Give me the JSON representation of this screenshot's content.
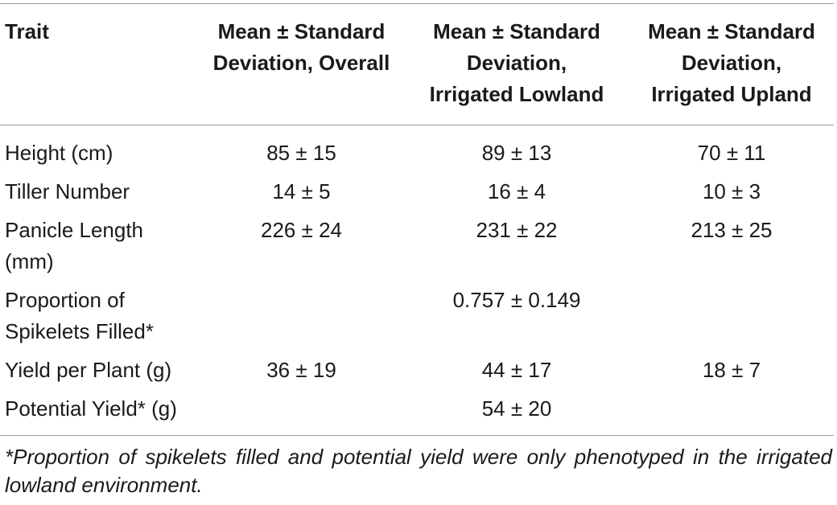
{
  "table": {
    "headers": {
      "trait": "Trait",
      "overall": [
        "Mean ± Standard",
        "Deviation, Overall"
      ],
      "lowland": [
        "Mean ± Standard",
        "Deviation,",
        "Irrigated Lowland"
      ],
      "upland": [
        "Mean ± Standard",
        "Deviation,",
        "Irrigated Upland"
      ]
    },
    "rows": [
      {
        "trait": [
          "Height (cm)"
        ],
        "overall": "85 ± 15",
        "lowland": "89 ± 13",
        "upland": "70 ± 11"
      },
      {
        "trait": [
          "Tiller Number"
        ],
        "overall": "14 ± 5",
        "lowland": "16 ± 4",
        "upland": "10 ± 3"
      },
      {
        "trait": [
          "Panicle Length",
          "(mm)"
        ],
        "overall": "226 ± 24",
        "lowland": "231 ± 22",
        "upland": "213 ± 25"
      },
      {
        "trait": [
          "Proportion of",
          "Spikelets Filled*"
        ],
        "overall": "",
        "lowland": "0.757 ± 0.149",
        "upland": ""
      },
      {
        "trait": [
          "Yield per Plant (g)"
        ],
        "overall": "36 ± 19",
        "lowland": "44 ± 17",
        "upland": "18 ± 7"
      },
      {
        "trait": [
          "Potential Yield* (g)"
        ],
        "overall": "",
        "lowland": "54 ± 20",
        "upland": ""
      }
    ]
  },
  "footnote": "*Proportion of spikelets filled and potential yield were only phenotyped in the irrigated lowland environment."
}
